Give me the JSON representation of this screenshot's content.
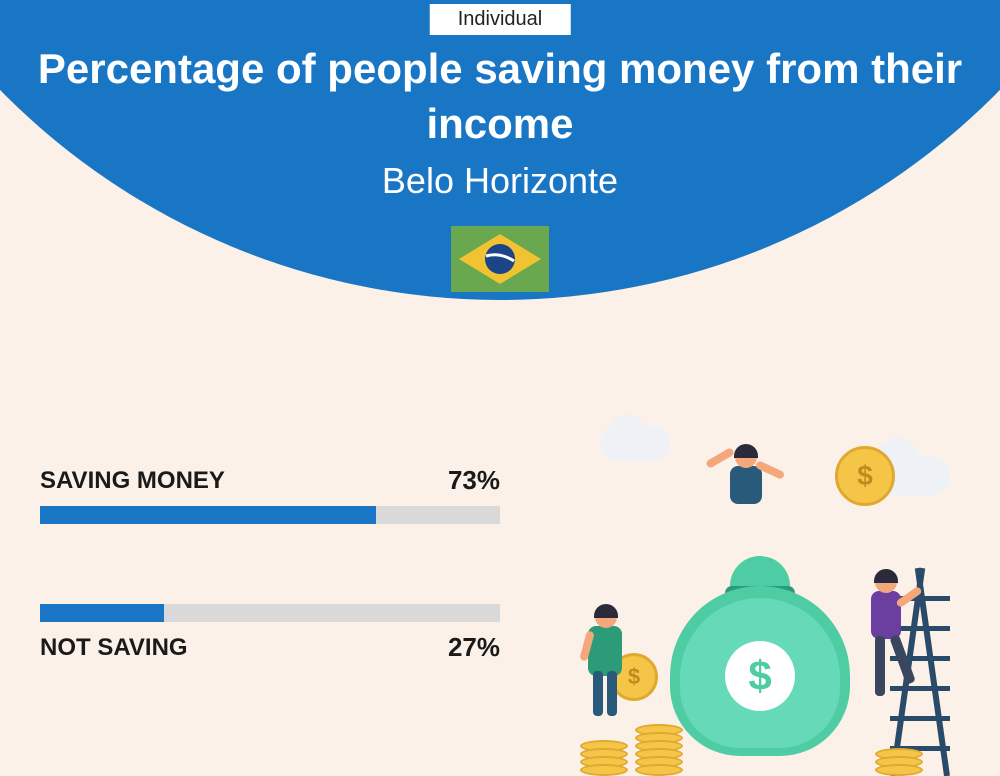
{
  "tag": "Individual",
  "title": "Percentage of people saving money from their income",
  "subtitle": "Belo Horizonte",
  "flag": {
    "bg": "#6aa84f",
    "diamond": "#f1c232",
    "circle": "#1c4587"
  },
  "colors": {
    "header_bg": "#1976c5",
    "page_bg": "#fbf1e8",
    "bar_fill": "#1976c5",
    "bar_track": "#d9d9d9",
    "text": "#1a1a1a",
    "bag_outer": "#4ecca3",
    "bag_inner": "#66d9b8",
    "coin": "#f5c547",
    "coin_edge": "#e0a82e"
  },
  "bars": [
    {
      "label": "SAVING MONEY",
      "value_text": "73%",
      "percent": 73
    },
    {
      "label": "NOT SAVING",
      "value_text": "27%",
      "percent": 27
    }
  ],
  "illustration": {
    "bag_symbol": "$",
    "coin_symbol": "$"
  }
}
